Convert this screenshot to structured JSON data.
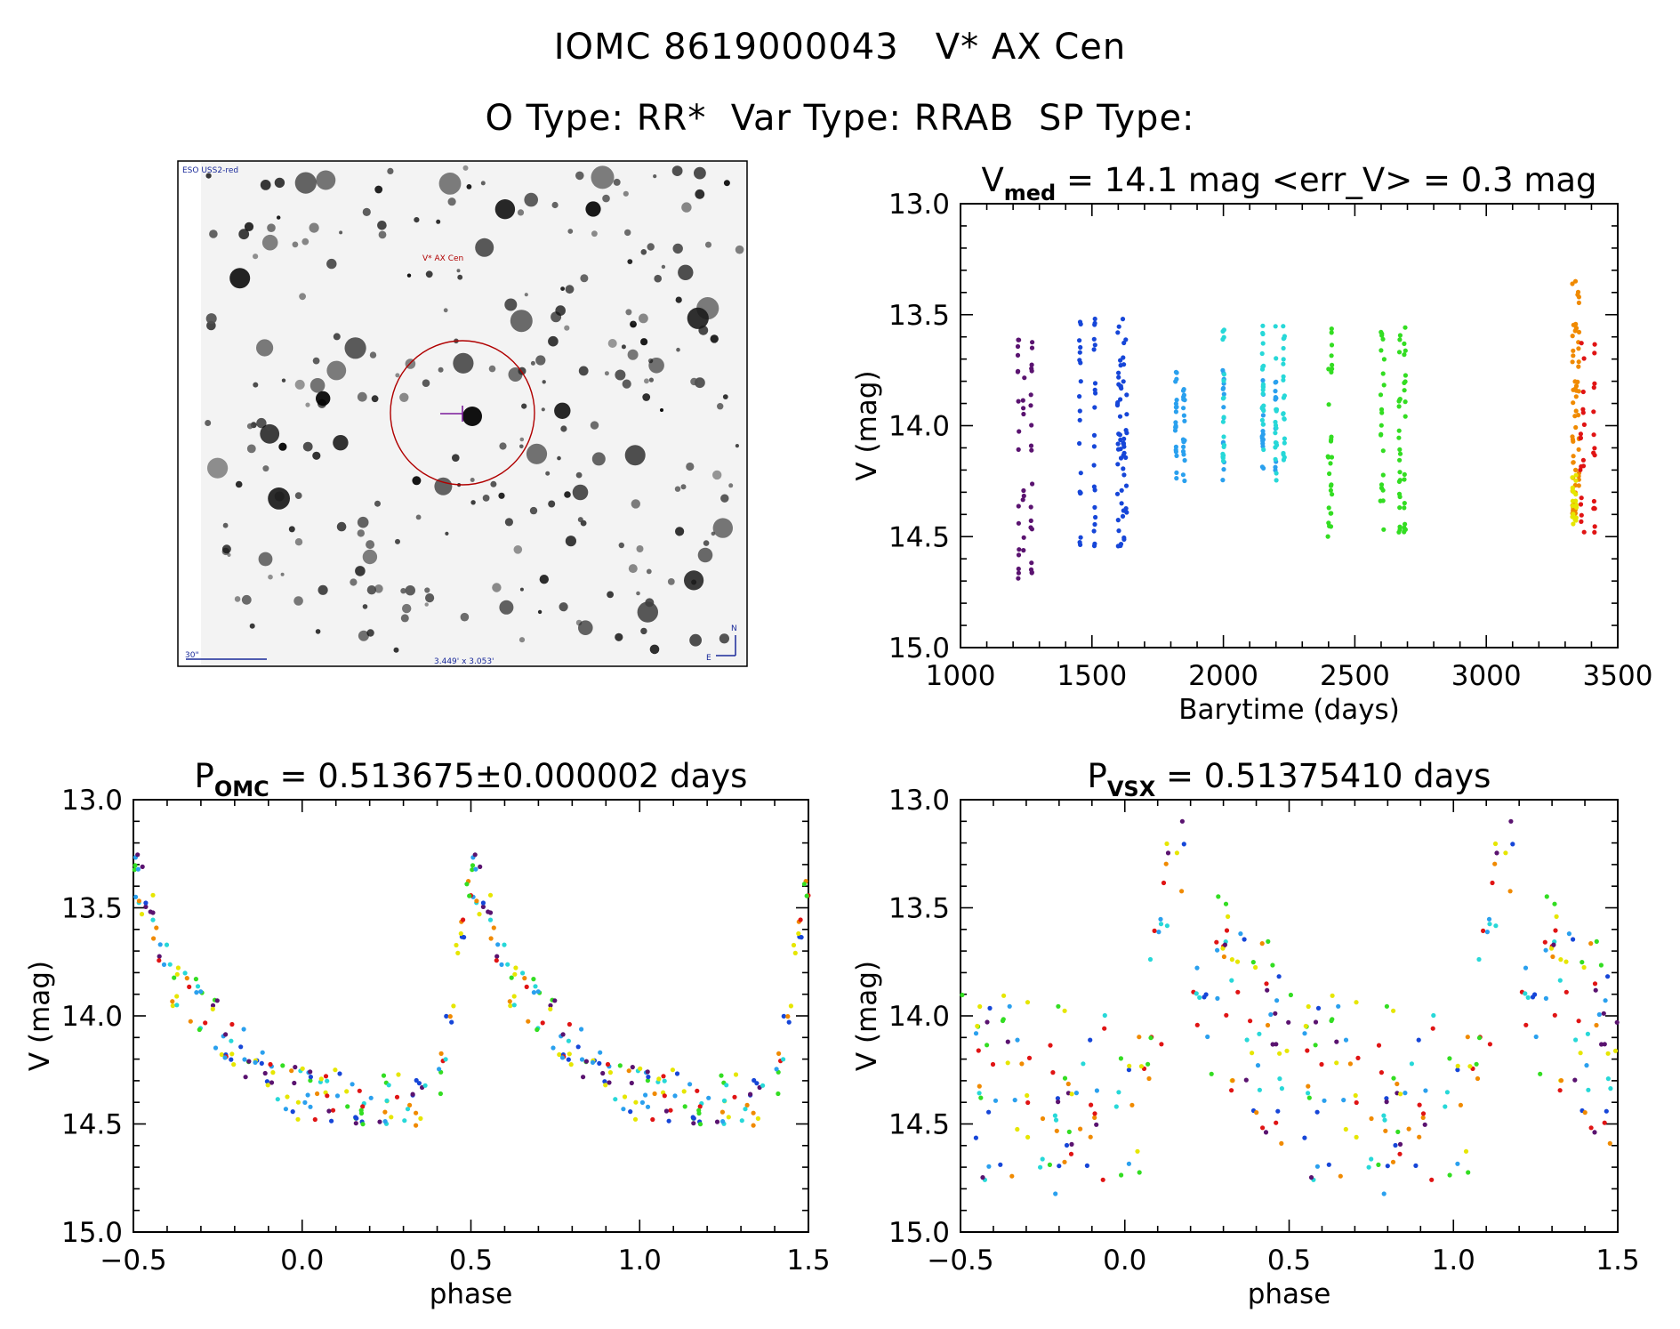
{
  "header": {
    "line1": "IOMC 8619000043   V* AX Cen",
    "line2": "O Type: RR*  Var Type: RRAB  SP Type:"
  },
  "finder": {
    "survey_label": "ESO USS2-red",
    "target_label": "V* AX Cen",
    "scale_label": "30\"",
    "fov_label": "3.449' x 3.053'",
    "north_label": "N",
    "east_label": "E"
  },
  "colors": {
    "purple": "#5a1370",
    "blue": "#1646d8",
    "sky": "#2aa0ee",
    "cyan": "#27d8d8",
    "green": "#33dd22",
    "yellow": "#e6e600",
    "orange": "#f08a00",
    "red": "#e01414",
    "darkred": "#8a0000"
  },
  "chart_data": [
    {
      "id": "lightcurve",
      "type": "scatter",
      "title_pre": "V",
      "title_sub": "med",
      "title_post": " = 14.1 mag <err_V> = 0.3 mag",
      "xlabel": "Barytime (days)",
      "ylabel": "V (mag)",
      "xlim": [
        1000,
        3500
      ],
      "ylim": [
        15.0,
        13.0
      ],
      "y_inverted": true,
      "xticks": [
        1000,
        1500,
        2000,
        2500,
        3000,
        3500
      ],
      "yticks": [
        "13.0",
        "13.5",
        "14.0",
        "14.5",
        "15.0"
      ],
      "groups": [
        {
          "color": "purple",
          "x": [
            1220,
            1240,
            1270
          ],
          "v_min": 13.6,
          "v_max": 14.7
        },
        {
          "color": "blue",
          "x": [
            1455,
            1510,
            1600,
            1610,
            1620,
            1630
          ],
          "v_min": 13.5,
          "v_max": 14.6
        },
        {
          "color": "sky",
          "x": [
            1820,
            1850,
            2000,
            2150,
            2200
          ],
          "v_min": 13.75,
          "v_max": 14.25
        },
        {
          "color": "cyan",
          "x": [
            2000,
            2150,
            2200,
            2230
          ],
          "v_min": 13.55,
          "v_max": 14.25
        },
        {
          "color": "green",
          "x": [
            2400,
            2410,
            2600,
            2610,
            2670,
            2690
          ],
          "v_min": 13.55,
          "v_max": 14.5
        },
        {
          "color": "orange",
          "x": [
            3330,
            3340,
            3350
          ],
          "v_min": 13.27,
          "v_max": 14.4
        },
        {
          "color": "yellow",
          "x": [
            3330,
            3340
          ],
          "v_min": 14.2,
          "v_max": 14.45
        },
        {
          "color": "red",
          "x": [
            3360,
            3370,
            3410
          ],
          "v_min": 13.6,
          "v_max": 14.5
        }
      ]
    },
    {
      "id": "phase_omc",
      "type": "scatter",
      "title_pre": "P",
      "title_sub": "OMC",
      "title_post": " = 0.513675±0.000002 days",
      "xlabel": "phase",
      "ylabel": "V (mag)",
      "xlim": [
        -0.5,
        1.5
      ],
      "ylim": [
        15.0,
        13.0
      ],
      "y_inverted": true,
      "xticks": [
        "−0.5",
        "0.0",
        "0.5",
        "1.0",
        "1.5"
      ],
      "yticks": [
        "13.0",
        "13.5",
        "14.0",
        "14.5",
        "15.0"
      ],
      "curve": {
        "max_phase": -0.5,
        "v_max_bright": 13.3,
        "v_min_faint": 14.45
      }
    },
    {
      "id": "phase_vsx",
      "type": "scatter",
      "title_pre": "P",
      "title_sub": "VSX",
      "title_post": " = 0.51375410 days",
      "xlabel": "phase",
      "ylabel": "V (mag)",
      "xlim": [
        -0.5,
        1.5
      ],
      "ylim": [
        15.0,
        13.0
      ],
      "y_inverted": true,
      "xticks": [
        "−0.5",
        "0.0",
        "0.5",
        "1.0",
        "1.5"
      ],
      "yticks": [
        "13.0",
        "13.5",
        "14.0",
        "14.5",
        "15.0"
      ]
    }
  ]
}
